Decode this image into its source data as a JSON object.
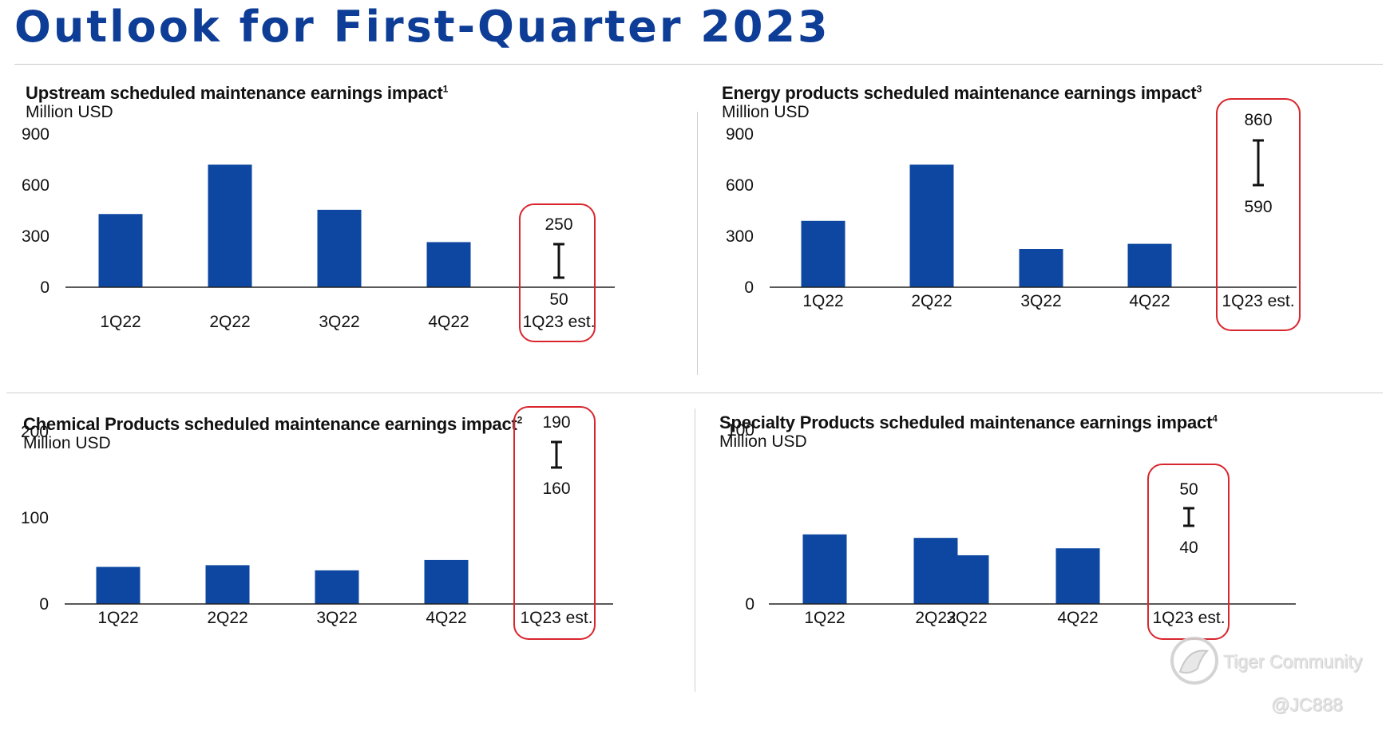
{
  "page": {
    "title": "Outlook for First-Quarter 2023"
  },
  "colors": {
    "bar": "#0d47a1",
    "title": "#0d3d96",
    "highlight": "#d9262e",
    "axis": "#222222"
  },
  "watermark": {
    "brand": "Tiger Community",
    "user": "@JC888"
  },
  "chart_data": [
    {
      "type": "bar",
      "title": "Upstream scheduled maintenance earnings impact",
      "footnote": "1",
      "unit": "Million USD",
      "categories": [
        "1Q22",
        "2Q22",
        "3Q22",
        "4Q22",
        "1Q23 est."
      ],
      "values": [
        430,
        720,
        455,
        265,
        null
      ],
      "ylim": [
        0,
        900
      ],
      "yticks": [
        "900",
        "600",
        "300",
        "0"
      ],
      "estimate": {
        "low": 50,
        "high": 250,
        "low_label": "50",
        "high_label": "250"
      }
    },
    {
      "type": "bar",
      "title": "Energy products scheduled maintenance earnings impact",
      "footnote": "3",
      "unit": "Million USD",
      "categories": [
        "1Q22",
        "2Q22",
        "3Q22",
        "4Q22",
        "1Q23 est."
      ],
      "values": [
        390,
        720,
        225,
        255,
        null
      ],
      "ylim": [
        0,
        900
      ],
      "yticks": [
        "900",
        "600",
        "300",
        "0"
      ],
      "estimate": {
        "low": 590,
        "high": 860,
        "low_label": "590",
        "high_label": "860"
      }
    },
    {
      "type": "bar",
      "title": "Chemical Products scheduled maintenance earnings impact",
      "footnote": "2",
      "unit": "Million USD",
      "categories": [
        "1Q22",
        "2Q22",
        "3Q22",
        "4Q22",
        "1Q23 est."
      ],
      "values": [
        43,
        45,
        39,
        51,
        null
      ],
      "ylim": [
        0,
        200
      ],
      "yticks": [
        "200",
        "100",
        "0"
      ],
      "estimate": {
        "low": 160,
        "high": 190,
        "low_label": "160",
        "high_label": "190"
      }
    },
    {
      "type": "bar",
      "title": "Specialty Products scheduled maintenance earnings impact",
      "footnote": "4",
      "unit": "Million USD",
      "categories": [
        "1Q22",
        "2Q22",
        "3Q22",
        "4Q22",
        "1Q23 est."
      ],
      "values": [
        40,
        38,
        28,
        32,
        null
      ],
      "ylim": [
        0,
        100
      ],
      "yticks": [
        "100",
        "0"
      ],
      "estimate": {
        "low": 40,
        "high": 50,
        "low_label": "40",
        "high_label": "50"
      }
    }
  ]
}
